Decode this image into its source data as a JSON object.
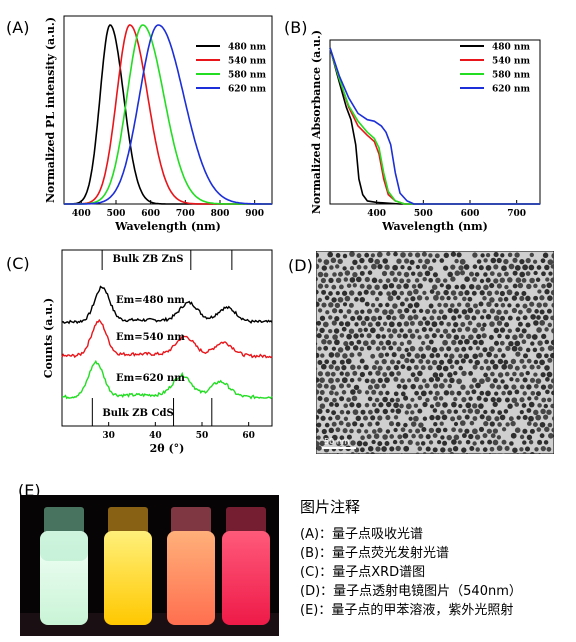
{
  "panels": {
    "a": {
      "label": "(A)"
    },
    "b": {
      "label": "(B)"
    },
    "c": {
      "label": "(C)"
    },
    "d": {
      "label": "(D)"
    },
    "e": {
      "label": "(E)"
    }
  },
  "tem": {
    "scale_bar": "50 nm"
  },
  "notes": {
    "title": "图片注释",
    "lines": [
      "(A)：量子点吸收光谱",
      "(B)：量子点荧光发射光谱",
      "(C)：量子点XRD谱图",
      "(D)：量子点透射电镜图片（540nm）",
      "(E)：量子点的甲苯溶液，紫外光照射"
    ]
  },
  "colors": {
    "s480": "#000000",
    "s540": "#e8161b",
    "s580": "#22dd22",
    "s620": "#1c2fd8"
  },
  "chart_data": [
    {
      "type": "line",
      "ylabel": "Normalized PL intensity (a.u.)",
      "xlabel": "Wavelength (nm)",
      "xlim": [
        350,
        950
      ],
      "xticks": [
        "400",
        "500",
        "600",
        "700",
        "800",
        "900"
      ],
      "ylim": [
        0,
        1.05
      ],
      "legend_position": "top-right",
      "series": [
        {
          "name": "480 nm",
          "center": 483,
          "fwhm": 80
        },
        {
          "name": "540 nm",
          "center": 540,
          "fwhm": 105
        },
        {
          "name": "580 nm",
          "center": 577,
          "fwhm": 125
        },
        {
          "name": "620 nm",
          "center": 622,
          "fwhm": 150
        }
      ]
    },
    {
      "type": "line",
      "ylabel": "Normalized Absorbance (a.u.)",
      "xlabel": "Wavelength (nm)",
      "xlim": [
        300,
        750
      ],
      "xticks": [
        "400",
        "500",
        "600",
        "700"
      ],
      "ylim": [
        0,
        1.05
      ],
      "legend_position": "top-right",
      "series": [
        {
          "name": "480 nm",
          "x": [
            300,
            320,
            335,
            345,
            355,
            362,
            370,
            380,
            400,
            450,
            750
          ],
          "y": [
            1.0,
            0.78,
            0.62,
            0.54,
            0.38,
            0.16,
            0.06,
            0.02,
            0.01,
            0.0,
            0.0
          ]
        },
        {
          "name": "540 nm",
          "x": [
            300,
            320,
            340,
            360,
            380,
            395,
            405,
            415,
            425,
            440,
            460,
            750
          ],
          "y": [
            1.0,
            0.8,
            0.62,
            0.5,
            0.44,
            0.4,
            0.32,
            0.16,
            0.06,
            0.02,
            0.0,
            0.0
          ]
        },
        {
          "name": "580 nm",
          "x": [
            300,
            320,
            340,
            360,
            380,
            395,
            405,
            415,
            425,
            440,
            460,
            750
          ],
          "y": [
            1.0,
            0.8,
            0.63,
            0.53,
            0.46,
            0.42,
            0.36,
            0.2,
            0.08,
            0.02,
            0.0,
            0.0
          ]
        },
        {
          "name": "620 nm",
          "x": [
            300,
            320,
            340,
            360,
            380,
            395,
            410,
            420,
            430,
            440,
            450,
            465,
            480,
            750
          ],
          "y": [
            1.0,
            0.82,
            0.68,
            0.58,
            0.54,
            0.53,
            0.5,
            0.46,
            0.38,
            0.2,
            0.07,
            0.02,
            0.0,
            0.0
          ]
        }
      ]
    },
    {
      "type": "line",
      "ylabel": "Counts (a.u.)",
      "xlabel": "2θ (°)",
      "xlim": [
        20,
        65
      ],
      "xticks": [
        "30",
        "40",
        "50",
        "60"
      ],
      "reference_top": {
        "label": "Bulk ZB ZnS",
        "positions": [
          28.6,
          47.6,
          56.4
        ]
      },
      "reference_bottom": {
        "label": "Bulk ZB CdS",
        "positions": [
          26.5,
          43.9,
          52.1
        ]
      },
      "series": [
        {
          "name": "Em=480 nm",
          "peaks": [
            [
              28.6,
              1.0
            ],
            [
              47.2,
              0.55
            ],
            [
              55.3,
              0.42
            ]
          ]
        },
        {
          "name": "Em=540 nm",
          "peaks": [
            [
              27.9,
              1.0
            ],
            [
              46.4,
              0.55
            ],
            [
              54.6,
              0.4
            ]
          ]
        },
        {
          "name": "Em=620 nm",
          "peaks": [
            [
              27.3,
              1.0
            ],
            [
              45.8,
              0.62
            ],
            [
              53.9,
              0.45
            ]
          ]
        }
      ]
    }
  ]
}
